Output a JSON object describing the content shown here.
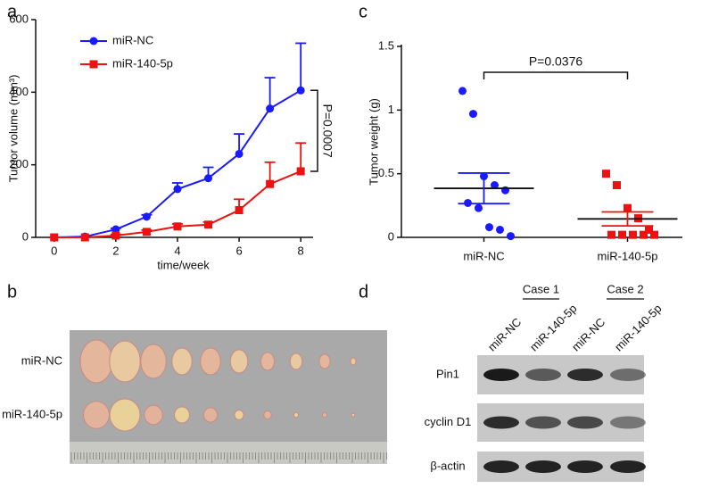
{
  "panel_labels": [
    "a",
    "b",
    "c",
    "d"
  ],
  "chart_data": [
    {
      "type": "line",
      "x": [
        0,
        1,
        2,
        3,
        4,
        5,
        6,
        7,
        8
      ],
      "xlim": [
        -0.6,
        8.4
      ],
      "xticks": [
        0,
        2,
        4,
        6,
        8
      ],
      "ylim": [
        0,
        600
      ],
      "yticks": [
        0,
        200,
        400,
        600
      ],
      "xlabel": "time/week",
      "ylabel": "Tumor volume (mm³)",
      "annotation": "P=0.0007",
      "series": [
        {
          "name": "miR-NC",
          "color": "#1a1aff",
          "marker": "circle",
          "values": [
            0,
            2,
            22,
            57,
            133,
            163,
            230,
            355,
            405
          ],
          "errors": [
            0,
            0,
            3,
            5,
            17,
            30,
            55,
            85,
            130
          ]
        },
        {
          "name": "miR-140-5p",
          "color": "#ee1111",
          "marker": "square",
          "values": [
            0,
            0,
            5,
            15,
            30,
            35,
            75,
            147,
            182
          ],
          "errors": [
            0,
            0,
            3,
            5,
            7,
            7,
            30,
            60,
            78
          ]
        }
      ]
    },
    {
      "type": "dot-plot",
      "categories": [
        "miR-NC",
        "miR-140-5p"
      ],
      "ylim": [
        0,
        1.5
      ],
      "yticks": [
        0,
        0.5,
        1,
        1.5
      ],
      "ylabel": "Tumor weight (g)",
      "annotation": "P=0.0376",
      "groups": [
        {
          "color": "#1a1aff",
          "marker": "circle",
          "values": [
            1.15,
            0.97,
            0.48,
            0.41,
            0.37,
            0.27,
            0.23,
            0.08,
            0.06,
            0.01
          ],
          "mean": 0.385,
          "sem": 0.12
        },
        {
          "color": "#ee1111",
          "marker": "square",
          "values": [
            0.5,
            0.41,
            0.23,
            0.15,
            0.06,
            0.02,
            0.02,
            0.02,
            0.02,
            0.02
          ],
          "mean": 0.145,
          "sem": 0.055
        }
      ]
    }
  ],
  "photo": {
    "rows": [
      "miR-NC",
      "miR-140-5p"
    ]
  },
  "western_blot": {
    "cases": [
      "Case 1",
      "Case 2"
    ],
    "lanes": [
      "miR-NC",
      "miR-140-5p",
      "miR-NC",
      "miR-140-5p"
    ],
    "proteins": [
      "Pin1",
      "cyclin D1",
      "β-actin"
    ]
  }
}
